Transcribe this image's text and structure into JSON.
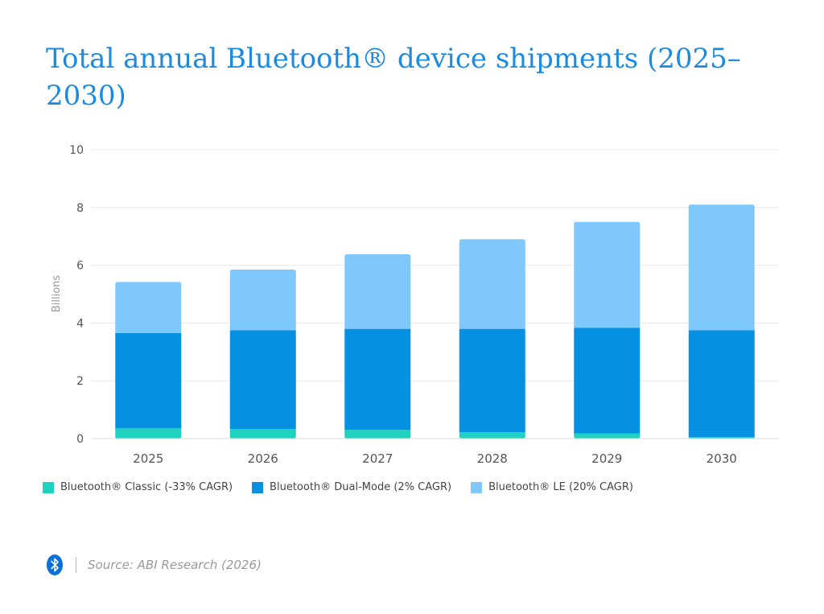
{
  "header": {
    "title": "Total annual Bluetooth® device shipments (2025–2030)"
  },
  "chart_data": {
    "type": "bar",
    "stacked": true,
    "title": "Total annual Bluetooth® device shipments (2025–2030)",
    "xlabel": "",
    "ylabel": "Billions",
    "ylim": [
      0,
      10
    ],
    "yticks": [
      0,
      2,
      4,
      6,
      8,
      10
    ],
    "grid": true,
    "legend_position": "bottom-left",
    "categories": [
      "2025",
      "2026",
      "2027",
      "2028",
      "2029",
      "2030"
    ],
    "series": [
      {
        "name": "Bluetooth® Classic (-33% CAGR)",
        "color": "#1dd3c0",
        "values": [
          0.35,
          0.33,
          0.3,
          0.22,
          0.18,
          0.05
        ]
      },
      {
        "name": "Bluetooth® Dual-Mode (2% CAGR)",
        "color": "#0791e3",
        "values": [
          3.3,
          3.42,
          3.5,
          3.58,
          3.65,
          3.7
        ]
      },
      {
        "name": "Bluetooth® LE (20% CAGR)",
        "color": "#7ec8fb",
        "values": [
          1.77,
          2.1,
          2.58,
          3.1,
          3.67,
          4.35
        ]
      }
    ]
  },
  "footer": {
    "logo_icon": "bluetooth-icon",
    "source": "Source: ABI Research (2026)"
  }
}
